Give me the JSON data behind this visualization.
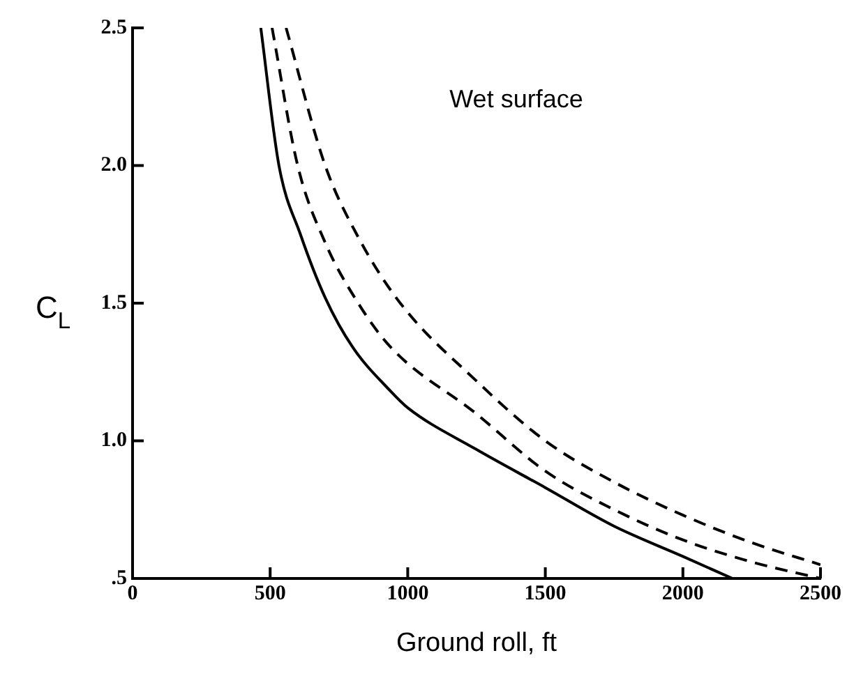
{
  "chart_data": {
    "type": "line",
    "xlabel": "Ground roll, ft",
    "ylabel": "C$_{L}$",
    "annotations": [
      "Wet surface"
    ],
    "xlim": [
      0,
      2500
    ],
    "xticks": [
      0,
      500,
      1000,
      1500,
      2000,
      2500
    ],
    "ylim": [
      0.5,
      2.5
    ],
    "yticks": [
      {
        "value": 0.5,
        "label": ".5"
      },
      {
        "value": 1.0,
        "label": "1.0"
      },
      {
        "value": 1.5,
        "label": "1.5"
      },
      {
        "value": 2.0,
        "label": "2.0"
      },
      {
        "value": 2.5,
        "label": "2.5"
      }
    ],
    "grid": false,
    "legend": false,
    "marker": "none",
    "series": [
      {
        "color": "#000000",
        "line_style": "solid",
        "x": [
          466,
          532,
          610,
          700,
          800,
          938,
          1000,
          1247,
          1500,
          1750,
          2000,
          2180
        ],
        "values": [
          2.5,
          2.0,
          1.75,
          1.52,
          1.34,
          1.18,
          1.12,
          0.97,
          0.83,
          0.69,
          0.58,
          0.5
        ]
      },
      {
        "color": "#000000",
        "line_style": "dashed",
        "x": [
          507,
          600,
          700,
          820,
          938,
          1247,
          1500,
          1750,
          2000,
          2250,
          2500
        ],
        "values": [
          2.5,
          2.0,
          1.72,
          1.5,
          1.34,
          1.1,
          0.89,
          0.75,
          0.64,
          0.56,
          0.5
        ]
      },
      {
        "color": "#000000",
        "line_style": "dashed",
        "x": [
          558,
          700,
          820,
          973,
          1247,
          1500,
          1750,
          2000,
          2250,
          2500
        ],
        "values": [
          2.5,
          2.0,
          1.74,
          1.5,
          1.22,
          1.0,
          0.85,
          0.73,
          0.63,
          0.55
        ]
      }
    ]
  }
}
